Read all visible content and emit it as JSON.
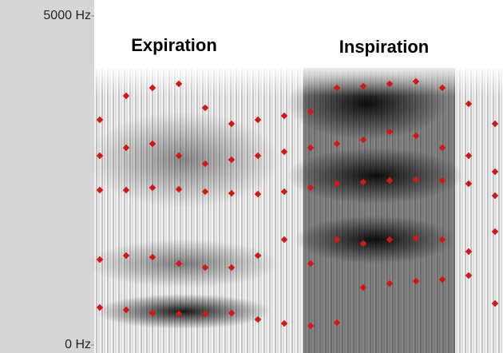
{
  "chart_data": {
    "type": "scatter",
    "annotations": [
      "Expiration",
      "Inspiration"
    ],
    "ylim": [
      0,
      5000
    ],
    "yticks": [
      {
        "value": 5000,
        "label": "5000 Hz"
      },
      {
        "value": 0,
        "label": "0 Hz"
      }
    ],
    "color": "#d01818",
    "series": [
      {
        "values": [
          570,
          534,
          485,
          473,
          473,
          485,
          388,
          328,
          291,
          340,
          874,
          934,
          971,
          995,
          1056,
          631
        ]
      },
      {
        "values": [
          1299,
          1359,
          1335,
          1238,
          1177,
          1177,
          1359,
          1602,
          1238,
          1602,
          1541,
          1602,
          1626,
          1602,
          1420,
          1723
        ]
      },
      {
        "values": [
          2354,
          2354,
          2391,
          2367,
          2330,
          2306,
          2294,
          2330,
          2391,
          2451,
          2476,
          2500,
          2512,
          2500,
          2451,
          2269
        ]
      },
      {
        "values": [
          2876,
          2998,
          3058,
          2876,
          2755,
          2816,
          2876,
          2937,
          2998,
          3058,
          3119,
          3240,
          3180,
          2998,
          2876,
          2634
        ]
      },
      {
        "values": [
          3422,
          3786,
          3908,
          3968,
          3604,
          3362,
          3422,
          3483,
          3544,
          3908,
          3932,
          3968,
          4005,
          3908,
          3665,
          3362
        ]
      }
    ]
  }
}
